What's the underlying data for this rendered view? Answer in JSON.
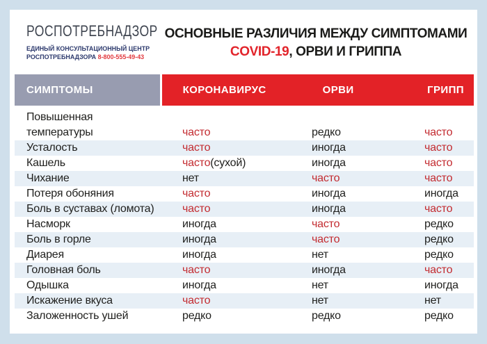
{
  "logo": {
    "name": "РОСПОТРЕБНАДЗОР",
    "center_line1": "ЕДИНЫЙ КОНСУЛЬТАЦИОННЫЙ ЦЕНТР",
    "center_line2": "РОСПОТРЕБНАДЗОРА",
    "phone": "8-800-555-49-43"
  },
  "title": {
    "line1": "ОСНОВНЫЕ РАЗЛИЧИЯ МЕЖДУ СИМПТОМАМИ",
    "covid": "COVID-19",
    "line2_rest": ", ОРВИ И ГРИППА"
  },
  "table": {
    "headers": {
      "symptoms": "СИМПТОМЫ",
      "covid": "КОРОНАВИРУС",
      "orvi": "ОРВИ",
      "flu": "ГРИПП"
    },
    "rows": [
      {
        "symptom_lines": [
          "Повышенная",
          "температуры"
        ],
        "covid": {
          "text": "часто",
          "hl": true
        },
        "orvi": {
          "text": "редко",
          "hl": false
        },
        "flu": {
          "text": "часто",
          "hl": true
        }
      },
      {
        "symptom_lines": [
          "Усталость"
        ],
        "covid": {
          "text": "часто",
          "hl": true
        },
        "orvi": {
          "text": "иногда",
          "hl": false
        },
        "flu": {
          "text": "часто",
          "hl": true
        }
      },
      {
        "symptom_lines": [
          "Кашель"
        ],
        "covid": {
          "text": "часто",
          "hl": true,
          "extra": "(сухой)"
        },
        "orvi": {
          "text": "иногда",
          "hl": false
        },
        "flu": {
          "text": "часто",
          "hl": true
        }
      },
      {
        "symptom_lines": [
          "Чихание"
        ],
        "covid": {
          "text": "нет",
          "hl": false
        },
        "orvi": {
          "text": "часто",
          "hl": true
        },
        "flu": {
          "text": "часто",
          "hl": true
        }
      },
      {
        "symptom_lines": [
          "Потеря обоняния"
        ],
        "covid": {
          "text": "часто",
          "hl": true
        },
        "orvi": {
          "text": "иногда",
          "hl": false
        },
        "flu": {
          "text": "иногда",
          "hl": false
        }
      },
      {
        "symptom_lines": [
          "Боль в суставах (ломота)"
        ],
        "covid": {
          "text": "часто",
          "hl": true
        },
        "orvi": {
          "text": "иногда",
          "hl": false
        },
        "flu": {
          "text": "часто",
          "hl": true
        }
      },
      {
        "symptom_lines": [
          "Насморк"
        ],
        "covid": {
          "text": "иногда",
          "hl": false
        },
        "orvi": {
          "text": "часто",
          "hl": true
        },
        "flu": {
          "text": "редко",
          "hl": false
        }
      },
      {
        "symptom_lines": [
          "Боль в горле"
        ],
        "covid": {
          "text": "иногда",
          "hl": false
        },
        "orvi": {
          "text": "часто",
          "hl": true
        },
        "flu": {
          "text": "редко",
          "hl": false
        }
      },
      {
        "symptom_lines": [
          "Диарея"
        ],
        "covid": {
          "text": "иногда",
          "hl": false
        },
        "orvi": {
          "text": "нет",
          "hl": false
        },
        "flu": {
          "text": "редко",
          "hl": false
        }
      },
      {
        "symptom_lines": [
          "Головная боль"
        ],
        "covid": {
          "text": "часто",
          "hl": true
        },
        "orvi": {
          "text": "иногда",
          "hl": false
        },
        "flu": {
          "text": "часто",
          "hl": true
        }
      },
      {
        "symptom_lines": [
          "Одышка"
        ],
        "covid": {
          "text": "иногда",
          "hl": false
        },
        "orvi": {
          "text": "нет",
          "hl": false
        },
        "flu": {
          "text": "иногда",
          "hl": false
        }
      },
      {
        "symptom_lines": [
          "Искажение вкуса"
        ],
        "covid": {
          "text": "часто",
          "hl": true
        },
        "orvi": {
          "text": "нет",
          "hl": false
        },
        "flu": {
          "text": "нет",
          "hl": false
        }
      },
      {
        "symptom_lines": [
          "Заложенность ушей"
        ],
        "covid": {
          "text": "редко",
          "hl": false
        },
        "orvi": {
          "text": "редко",
          "hl": false
        },
        "flu": {
          "text": "редко",
          "hl": false
        }
      }
    ]
  },
  "colors": {
    "page_bg": "#cfdfeb",
    "card_bg": "#ffffff",
    "header_gray": "#989cb0",
    "header_red": "#e32227",
    "stripe": "#e7eff6",
    "value_red": "#c32b30",
    "title_red": "#e2242b",
    "phone_red": "#e23a3f",
    "logo_navy": "#2d3a6d",
    "text_black": "#1f1f1d"
  }
}
